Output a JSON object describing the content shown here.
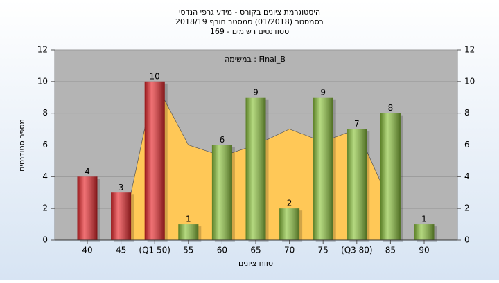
{
  "chart_data": {
    "type": "bar",
    "title": "היסטוגרמת ציונים בקורס - מידע גרפי הנדסי",
    "subtitle": "בסמסטר (01/2018) סמסטר חורף 2018/19",
    "subtitle2": "סטודנטים רשומים - 169",
    "annotation": "במשימה : Final_B",
    "x_label": "טווח ציונים",
    "y_label": "מספר סטודנטים",
    "categories": [
      "40",
      "45",
      "(Q1 50)",
      "55",
      "60",
      "65",
      "70",
      "75",
      "(Q3 80)",
      "85",
      "90"
    ],
    "series": [
      {
        "type": "bar",
        "values": [
          4,
          3,
          10,
          1,
          6,
          9,
          2,
          9,
          7,
          8,
          1
        ],
        "colors": [
          "#e8262a",
          "#e8262a",
          "#e8262a",
          "#8cc43c",
          "#8cc43c",
          "#8cc43c",
          "#8cc43c",
          "#8cc43c",
          "#8cc43c",
          "#8cc43c",
          "#8cc43c"
        ]
      },
      {
        "type": "area",
        "color": "#ffc857",
        "values": [
          null,
          0,
          10,
          6,
          5.3,
          6,
          7,
          6.2,
          7,
          2.3,
          null
        ]
      }
    ],
    "ylim": [
      0,
      12
    ],
    "yticks": [
      0,
      2,
      4,
      6,
      8,
      10,
      12
    ],
    "y2lim": [
      0,
      12
    ],
    "y2ticks": [
      0,
      2,
      4,
      6,
      8,
      10,
      12
    ],
    "grid": true
  }
}
